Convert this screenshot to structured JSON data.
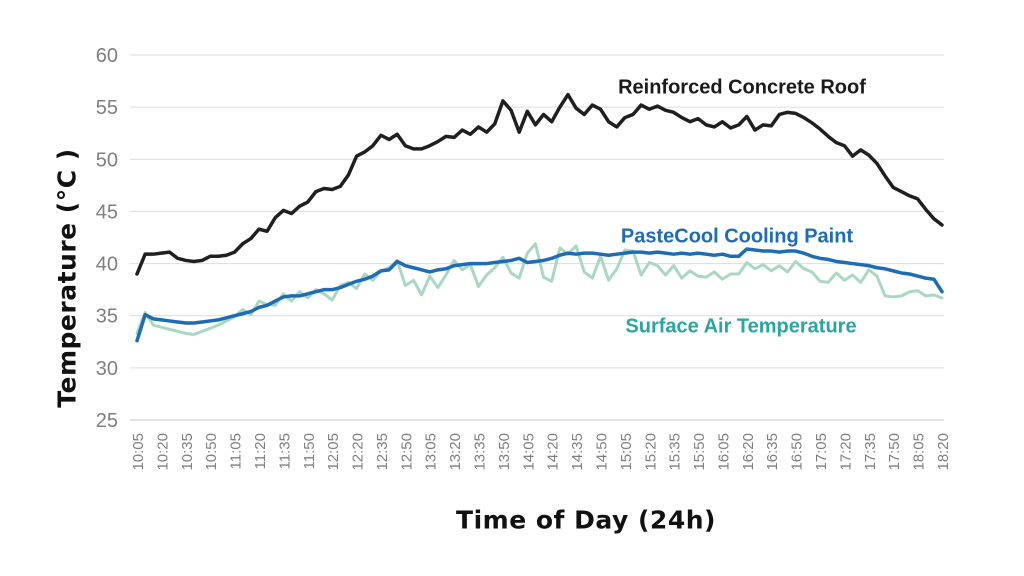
{
  "chart_data": {
    "type": "line",
    "title": "",
    "xlabel": "Time of Day (24h)",
    "ylabel": "Temperature (°C )",
    "ylim": [
      25,
      60
    ],
    "y_ticks": [
      60,
      55,
      50,
      45,
      40,
      35,
      30,
      25
    ],
    "grid": "horizontal",
    "legend_position": "inline-annotations",
    "x_tick_every": 3,
    "x_tick_labels": [
      "10:05",
      "10:20",
      "10:35",
      "10:50",
      "11:05",
      "11:20",
      "11:35",
      "11:50",
      "12:05",
      "12:20",
      "12:35",
      "12:50",
      "13:05",
      "13:20",
      "13:35",
      "13:50",
      "14:05",
      "14:20",
      "14:35",
      "14:50",
      "15:05",
      "15:20",
      "15:35",
      "15:50",
      "16:05",
      "16:20",
      "16:35",
      "16:50",
      "17:05",
      "17:20",
      "17:35",
      "17:50",
      "18:05",
      "18:20"
    ],
    "x": [
      "10:05",
      "10:10",
      "10:15",
      "10:20",
      "10:25",
      "10:30",
      "10:35",
      "10:40",
      "10:45",
      "10:50",
      "10:55",
      "11:00",
      "11:05",
      "11:10",
      "11:15",
      "11:20",
      "11:25",
      "11:30",
      "11:35",
      "11:40",
      "11:45",
      "11:50",
      "11:55",
      "12:00",
      "12:05",
      "12:10",
      "12:15",
      "12:20",
      "12:25",
      "12:30",
      "12:35",
      "12:40",
      "12:45",
      "12:50",
      "12:55",
      "13:00",
      "13:05",
      "13:10",
      "13:15",
      "13:20",
      "13:25",
      "13:30",
      "13:35",
      "13:40",
      "13:45",
      "13:50",
      "13:55",
      "14:00",
      "14:05",
      "14:10",
      "14:15",
      "14:20",
      "14:25",
      "14:30",
      "14:35",
      "14:40",
      "14:45",
      "14:50",
      "14:55",
      "15:00",
      "15:05",
      "15:10",
      "15:15",
      "15:20",
      "15:25",
      "15:30",
      "15:35",
      "15:40",
      "15:45",
      "15:50",
      "15:55",
      "16:00",
      "16:05",
      "16:10",
      "16:15",
      "16:20",
      "16:25",
      "16:30",
      "16:35",
      "16:40",
      "16:45",
      "16:50",
      "16:55",
      "17:00",
      "17:05",
      "17:10",
      "17:15",
      "17:20",
      "17:25",
      "17:30",
      "17:35",
      "17:40",
      "17:45",
      "17:50",
      "17:55",
      "18:00",
      "18:05",
      "18:10",
      "18:15",
      "18:20"
    ],
    "series": [
      {
        "id": "roof",
        "name": "Reinforced Concrete Roof",
        "color": "#1f1f1f",
        "label_color": "#1a1a1a",
        "width": 3.5,
        "values": [
          39.0,
          40.9,
          40.9,
          41.0,
          41.1,
          40.5,
          40.3,
          40.2,
          40.3,
          40.7,
          40.7,
          40.8,
          41.1,
          41.9,
          42.4,
          43.3,
          43.1,
          44.4,
          45.1,
          44.8,
          45.5,
          45.9,
          46.9,
          47.2,
          47.1,
          47.4,
          48.5,
          50.3,
          50.7,
          51.3,
          52.3,
          51.9,
          52.4,
          51.3,
          51.0,
          51.0,
          51.3,
          51.7,
          52.2,
          52.1,
          52.8,
          52.4,
          53.1,
          52.6,
          53.4,
          55.6,
          54.7,
          52.6,
          54.6,
          53.3,
          54.3,
          53.6,
          55.0,
          56.2,
          54.9,
          54.3,
          55.2,
          54.8,
          53.6,
          53.1,
          54.0,
          54.3,
          55.2,
          54.8,
          55.1,
          54.7,
          54.5,
          54.0,
          53.6,
          53.9,
          53.3,
          53.1,
          53.6,
          53.0,
          53.3,
          54.1,
          52.8,
          53.3,
          53.2,
          54.3,
          54.5,
          54.4,
          54.0,
          53.5,
          52.9,
          52.2,
          51.6,
          51.3,
          50.3,
          50.9,
          50.4,
          49.6,
          48.4,
          47.3,
          46.9,
          46.5,
          46.2,
          45.2,
          44.3,
          43.7
        ]
      },
      {
        "id": "paint",
        "name": "PasteCool Cooling Paint",
        "color": "#1e6cb5",
        "label_color": "#1e6cb5",
        "width": 3.5,
        "values": [
          32.6,
          35.1,
          34.7,
          34.6,
          34.5,
          34.4,
          34.3,
          34.3,
          34.4,
          34.5,
          34.6,
          34.8,
          35.0,
          35.2,
          35.4,
          35.8,
          36.0,
          36.4,
          36.8,
          36.9,
          36.9,
          37.1,
          37.3,
          37.5,
          37.5,
          37.7,
          38.0,
          38.3,
          38.5,
          38.8,
          39.3,
          39.4,
          40.2,
          39.8,
          39.6,
          39.4,
          39.2,
          39.4,
          39.5,
          39.8,
          39.9,
          40.0,
          40.0,
          40.0,
          40.1,
          40.2,
          40.3,
          40.5,
          40.1,
          40.2,
          40.3,
          40.5,
          40.8,
          41.0,
          40.9,
          41.0,
          41.0,
          40.9,
          40.8,
          40.9,
          41.0,
          41.1,
          41.1,
          41.0,
          41.1,
          41.0,
          40.9,
          41.0,
          40.9,
          41.0,
          40.9,
          40.8,
          40.9,
          40.7,
          40.7,
          41.4,
          41.3,
          41.2,
          41.2,
          41.1,
          41.2,
          41.2,
          41.0,
          40.7,
          40.5,
          40.4,
          40.2,
          40.1,
          40.0,
          39.9,
          39.8,
          39.6,
          39.5,
          39.3,
          39.1,
          39.0,
          38.8,
          38.6,
          38.5,
          37.3
        ]
      },
      {
        "id": "air",
        "name": "Surface Air Temperature",
        "color": "#a8d8c3",
        "label_color": "#2aa5a2",
        "width": 3,
        "values": [
          33.3,
          35.3,
          34.1,
          33.9,
          33.7,
          33.5,
          33.3,
          33.2,
          33.5,
          33.8,
          34.1,
          34.5,
          34.9,
          35.6,
          35.1,
          36.4,
          36.1,
          36.0,
          37.1,
          36.4,
          37.3,
          36.7,
          37.5,
          37.1,
          36.5,
          37.9,
          38.2,
          37.6,
          39.0,
          38.4,
          39.3,
          39.6,
          40.3,
          37.9,
          38.4,
          37.0,
          38.8,
          37.7,
          38.9,
          40.3,
          39.4,
          39.9,
          37.8,
          38.9,
          39.6,
          40.6,
          39.1,
          38.6,
          41.0,
          41.9,
          38.7,
          38.3,
          41.5,
          40.9,
          41.7,
          39.2,
          38.6,
          40.7,
          38.4,
          39.5,
          41.3,
          41.2,
          38.9,
          40.1,
          39.8,
          38.9,
          39.8,
          38.6,
          39.3,
          38.8,
          38.7,
          39.2,
          38.5,
          39.0,
          39.0,
          40.1,
          39.5,
          39.9,
          39.3,
          39.8,
          39.2,
          40.2,
          39.5,
          39.2,
          38.3,
          38.2,
          39.1,
          38.4,
          38.9,
          38.2,
          39.4,
          38.8,
          36.9,
          36.8,
          36.9,
          37.3,
          37.4,
          36.9,
          37.0,
          36.7
        ]
      }
    ],
    "axis_style": {
      "tick_color": "#7f7f7f",
      "gridline_color": "#dcdcdc",
      "baseline_color": "#c4c4c4",
      "y_tick_font_size": 20,
      "x_tick_font_size": 15
    }
  }
}
